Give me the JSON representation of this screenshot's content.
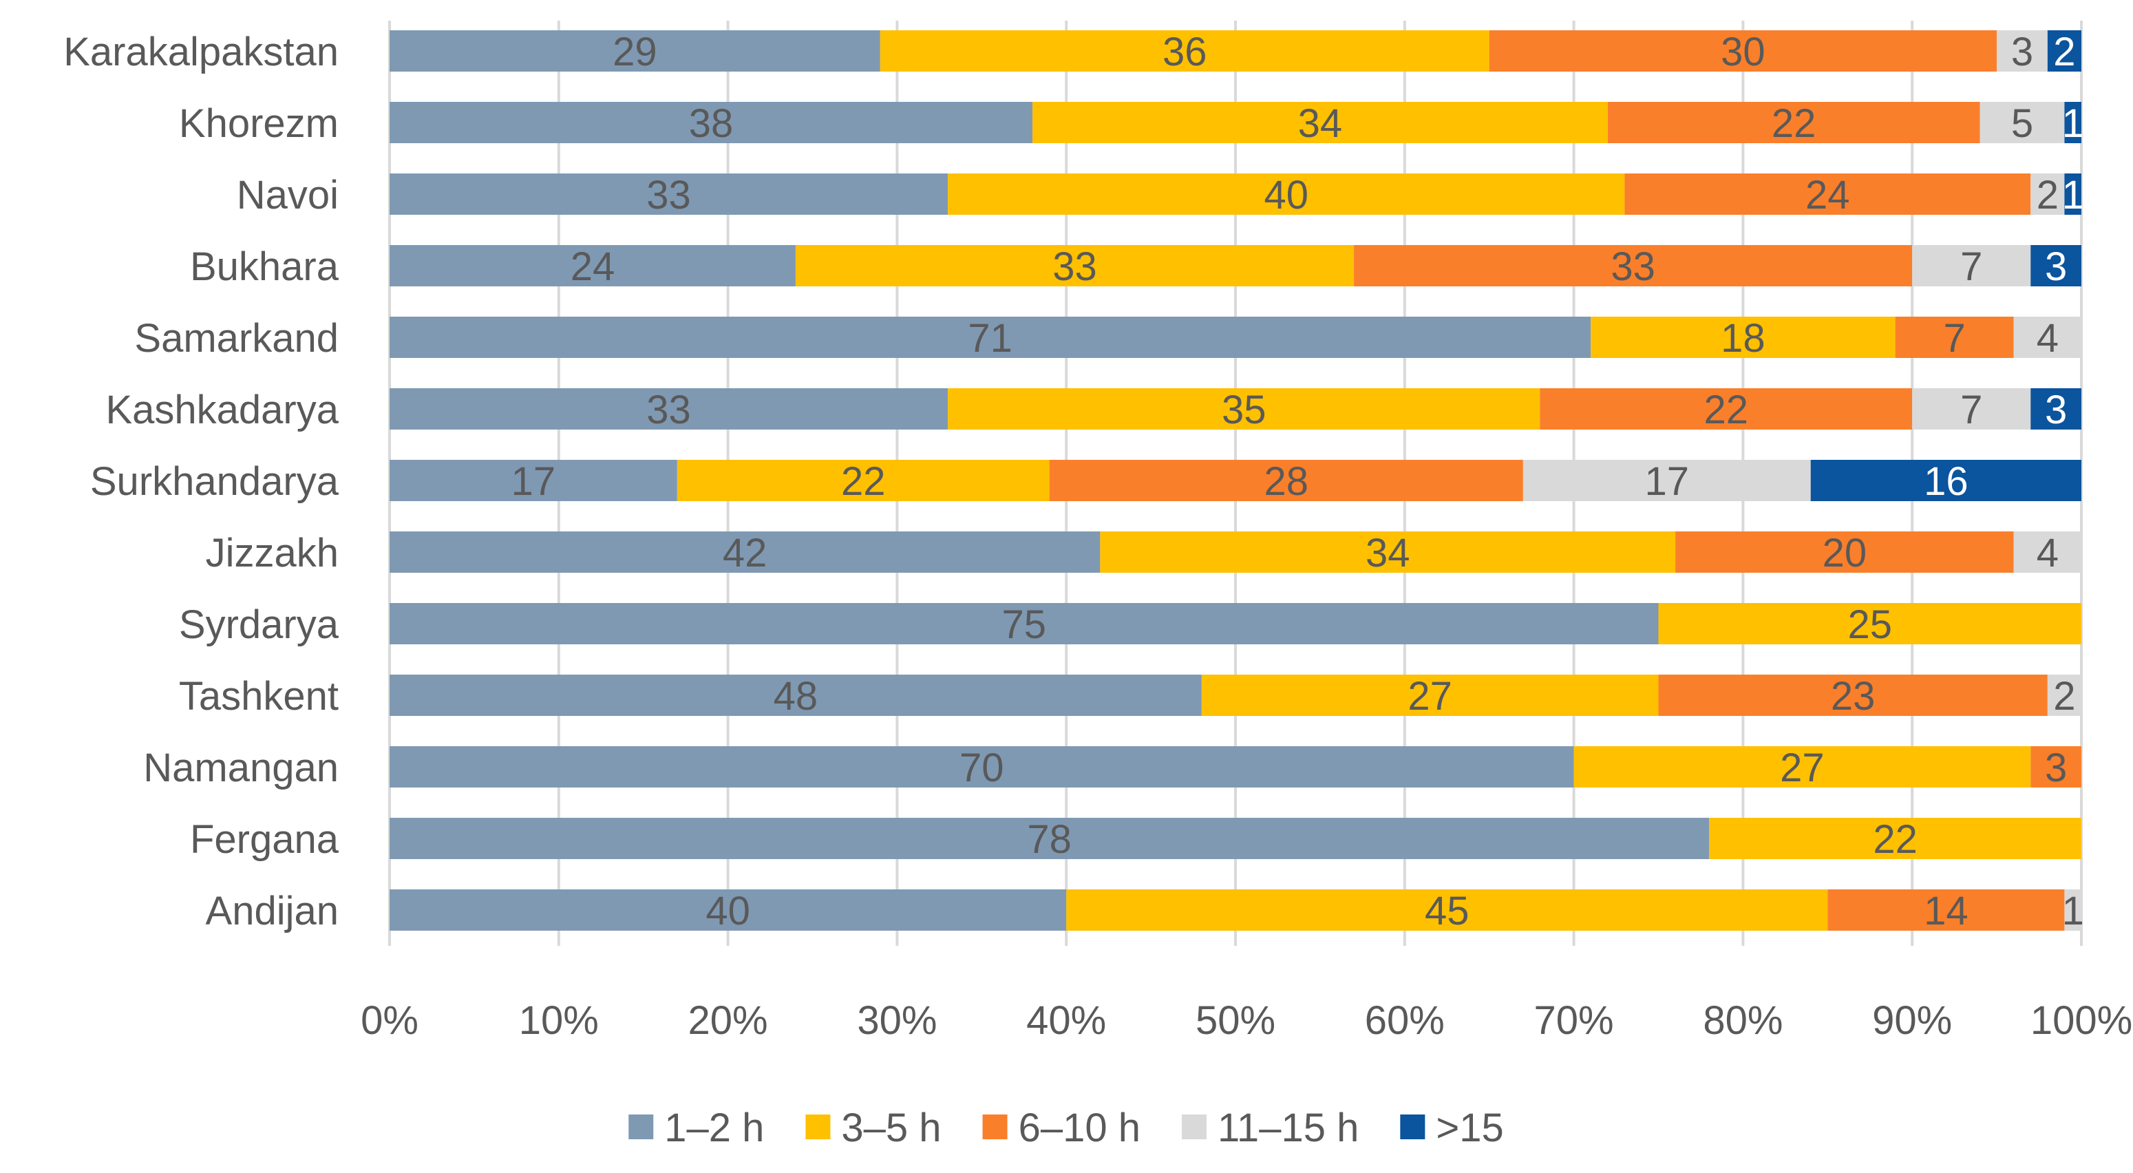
{
  "chart_data": {
    "type": "bar",
    "orientation": "horizontal",
    "stacking": "percent",
    "title": "",
    "xlabel": "",
    "ylabel": "",
    "xlim": [
      0,
      100
    ],
    "x_ticks": [
      "0%",
      "10%",
      "20%",
      "30%",
      "40%",
      "50%",
      "60%",
      "70%",
      "80%",
      "90%",
      "100%"
    ],
    "grid": "vertical",
    "legend_position": "bottom",
    "categories": [
      "Karakalpakstan",
      "Khorezm",
      "Navoi",
      "Bukhara",
      "Samarkand",
      "Kashkadarya",
      "Surkhandarya",
      "Jizzakh",
      "Syrdarya",
      "Tashkent",
      "Namangan",
      "Fergana",
      "Andijan"
    ],
    "series": [
      {
        "name": "1–2 h",
        "color": "#7f99b3",
        "label_color": "#595959",
        "values": [
          29,
          38,
          33,
          24,
          71,
          33,
          17,
          42,
          75,
          48,
          70,
          78,
          40
        ]
      },
      {
        "name": "3–5 h",
        "color": "#ffc000",
        "label_color": "#595959",
        "values": [
          36,
          34,
          40,
          33,
          18,
          35,
          22,
          34,
          25,
          27,
          27,
          22,
          45
        ]
      },
      {
        "name": "6–10 h",
        "color": "#fa7f2a",
        "label_color": "#595959",
        "values": [
          30,
          22,
          24,
          33,
          7,
          22,
          28,
          20,
          0,
          23,
          3,
          0,
          14
        ]
      },
      {
        "name": "11–15 h",
        "color": "#d9d9d9",
        "label_color": "#595959",
        "values": [
          3,
          5,
          2,
          7,
          4,
          7,
          17,
          4,
          0,
          2,
          0,
          0,
          1
        ]
      },
      {
        "name": ">15",
        "color": "#0b549e",
        "label_color": "#ffffff",
        "values": [
          2,
          1,
          1,
          3,
          0,
          3,
          16,
          0,
          0,
          0,
          0,
          0,
          0
        ]
      }
    ]
  }
}
